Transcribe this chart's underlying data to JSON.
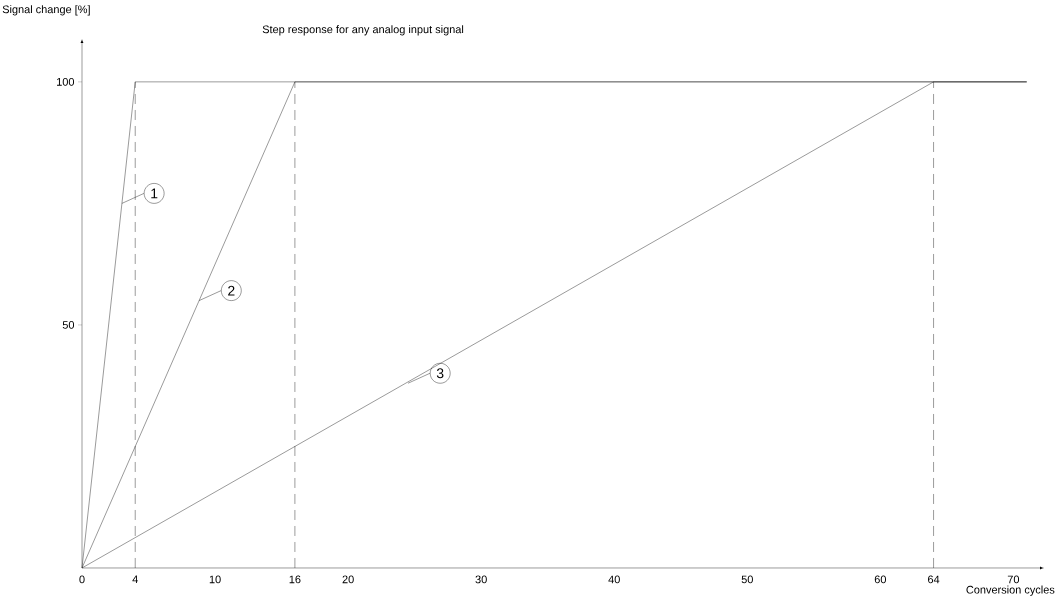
{
  "chart_data": {
    "type": "line",
    "title": "Step response for any analog input signal",
    "xlabel": "Conversion cycles",
    "ylabel": "Signal change [%]",
    "series": [
      {
        "color": "#000000",
        "x": [
          0,
          4,
          71
        ],
        "values": [
          0,
          100,
          100
        ]
      },
      {
        "color": "#000000",
        "x": [
          0,
          16,
          71
        ],
        "values": [
          0,
          100,
          100
        ]
      },
      {
        "color": "#000000",
        "x": [
          0,
          64,
          71
        ],
        "values": [
          0,
          100,
          100
        ]
      }
    ],
    "xlim": [
      0,
      72
    ],
    "ylim": [
      0,
      108
    ],
    "xticks": [
      0,
      4,
      10,
      16,
      20,
      30,
      40,
      50,
      60,
      64,
      70
    ],
    "yticks": [
      50,
      100
    ],
    "ref_lines": [
      {
        "axis": "x",
        "value": 4,
        "color": "#000000",
        "line_style": "dashed"
      },
      {
        "axis": "x",
        "value": 16,
        "color": "#000000",
        "line_style": "dashed"
      },
      {
        "axis": "x",
        "value": 64,
        "color": "#000000",
        "line_style": "dashed"
      }
    ],
    "annotations": [
      {
        "text": "1",
        "x": 3.0,
        "y": 75
      },
      {
        "text": "2",
        "x": 8.8,
        "y": 55
      },
      {
        "text": "3",
        "x": 24.5,
        "y": 38
      }
    ]
  }
}
